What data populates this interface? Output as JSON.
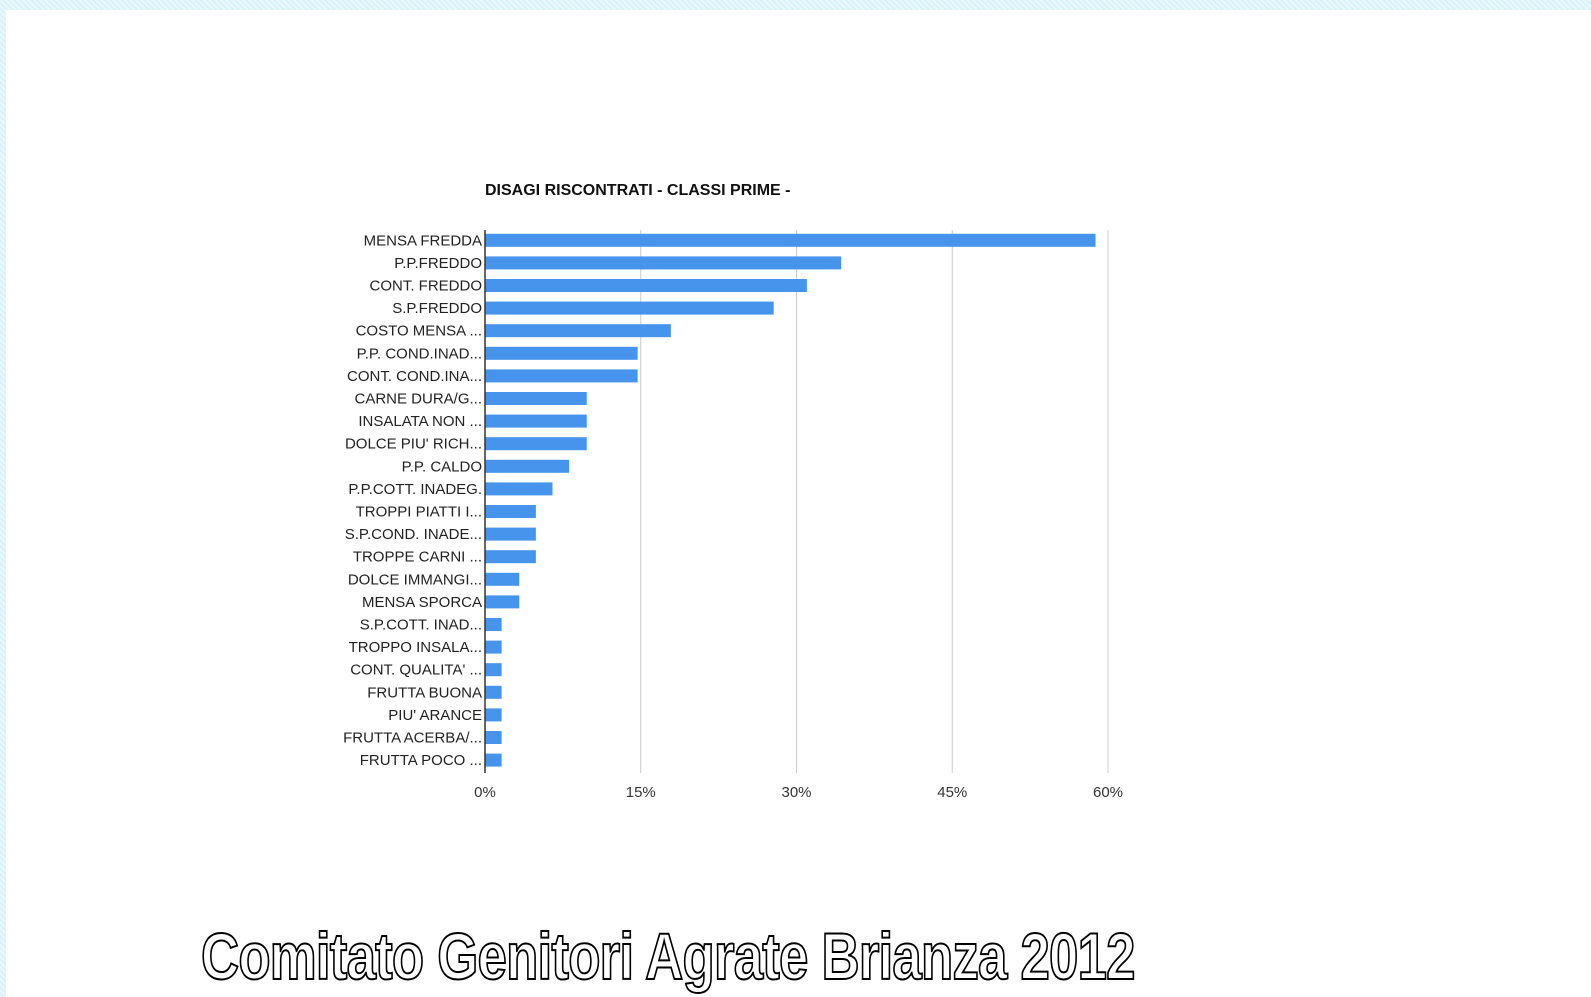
{
  "chart_data": {
    "type": "bar",
    "orientation": "horizontal",
    "title": "DISAGI RISCONTRATI - CLASSI PRIME -",
    "xlabel": "",
    "ylabel": "",
    "xlim": [
      0,
      60
    ],
    "xticks": [
      "0%",
      "15%",
      "30%",
      "45%",
      "60%"
    ],
    "grid": true,
    "legend": "none",
    "bar_color": "#4694ec",
    "categories": [
      "MENSA FREDDA",
      "P.P.FREDDO",
      "CONT. FREDDO",
      "S.P.FREDDO",
      "COSTO MENSA ...",
      "P.P. COND.INAD...",
      "CONT. COND.INA...",
      "CARNE DURA/G...",
      "INSALATA NON ...",
      "DOLCE PIU' RICH...",
      "P.P. CALDO",
      "P.P.COTT. INADEG.",
      "TROPPI PIATTI I...",
      "S.P.COND. INADE...",
      "TROPPE CARNI ...",
      "DOLCE IMMANGI...",
      "MENSA SPORCA",
      "S.P.COTT. INAD...",
      "TROPPO INSALA...",
      "CONT. QUALITA' ...",
      "FRUTTA BUONA",
      "PIU' ARANCE",
      "FRUTTA ACERBA/...",
      "FRUTTA POCO ..."
    ],
    "values": [
      58.8,
      34.3,
      31.0,
      27.8,
      17.9,
      14.7,
      14.7,
      9.8,
      9.8,
      9.8,
      8.1,
      6.5,
      4.9,
      4.9,
      4.9,
      3.3,
      3.3,
      1.6,
      1.6,
      1.6,
      1.6,
      1.6,
      1.6,
      1.6
    ]
  },
  "footer": {
    "title": "Comitato Genitori Agrate Brianza 2012"
  }
}
